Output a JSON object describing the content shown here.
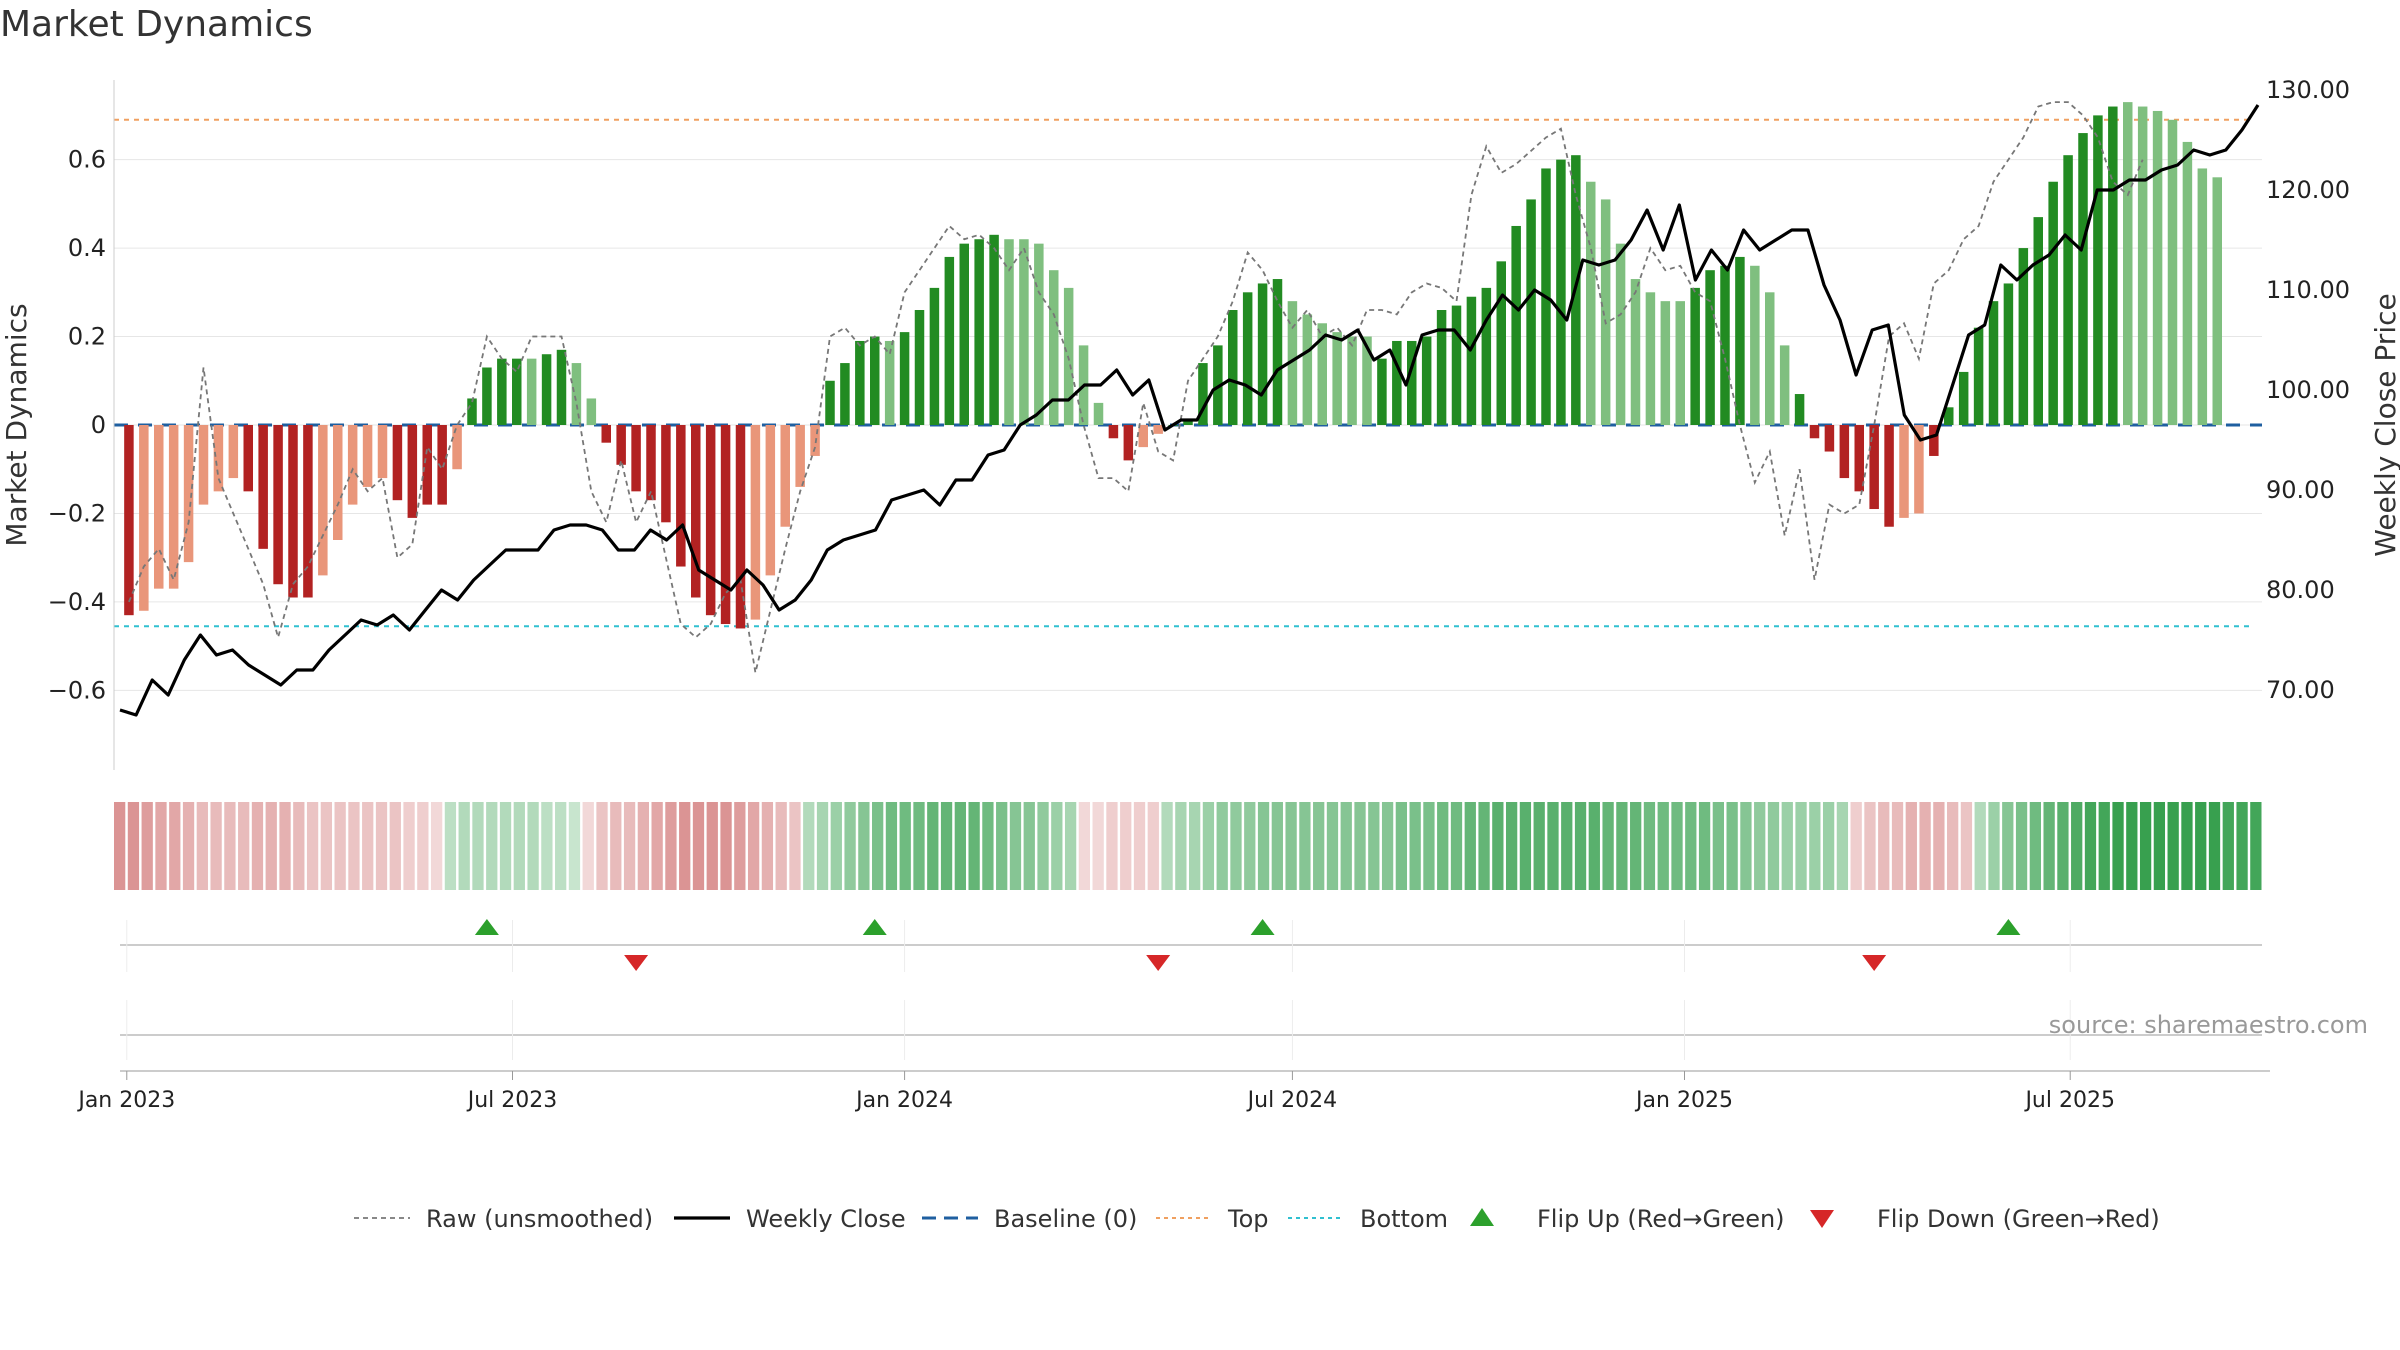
{
  "title": "Market Dynamics",
  "source": "source: sharemaestro.com",
  "chart_data": {
    "type": "bar",
    "title": "Market Dynamics",
    "ylabel_left": "Market Dynamics",
    "ylabel_right": "Weekly Close Price",
    "ylim_left": [
      -0.78,
      0.78
    ],
    "ylim_right": [
      62,
      131
    ],
    "yticks_left": [
      -0.6,
      -0.4,
      -0.2,
      0,
      0.2,
      0.4,
      0.6
    ],
    "ytick_labels_left": [
      "−0.6",
      "−0.4",
      "−0.2",
      "0",
      "0.2",
      "0.4",
      "0.6"
    ],
    "yticks_right": [
      70,
      80,
      90,
      100,
      110,
      120,
      130
    ],
    "ytick_labels_right": [
      "70.00",
      "80.00",
      "90.00",
      "100.00",
      "110.00",
      "120.00",
      "130.00"
    ],
    "x_start": "2022-12-26",
    "x_end": "2025-09-29",
    "xticks": [
      "2023-01-01",
      "2023-07-01",
      "2024-01-01",
      "2024-07-01",
      "2025-01-01",
      "2025-07-01"
    ],
    "xtick_labels": [
      "Jan 2023",
      "Jul 2023",
      "Jan 2024",
      "Jul 2024",
      "Jan 2025",
      "Jul 2025"
    ],
    "top_level": 0.69,
    "bottom_level": -0.455,
    "baseline": 0,
    "colors": {
      "strong_red": "#b22222",
      "weak_red": "#e9967a",
      "strong_green": "#228b22",
      "weak_green": "#7fbf7f",
      "raw": "#777777",
      "close": "#000000",
      "baseline": "#1f5fa0",
      "top": "#f0a060",
      "bottom": "#30c0d0",
      "flip_up": "#2ca02c",
      "flip_down": "#d62728"
    },
    "legend_position": "bottom-center",
    "legend": [
      "Raw (unsmoothed)",
      "Weekly Close",
      "Baseline (0)",
      "Top",
      "Bottom",
      "Flip Up (Red→Green)",
      "Flip Down (Green→Red)"
    ],
    "dynamics": [
      -0.43,
      -0.42,
      -0.37,
      -0.37,
      -0.31,
      -0.18,
      -0.15,
      -0.12,
      -0.15,
      -0.28,
      -0.36,
      -0.39,
      -0.39,
      -0.34,
      -0.26,
      -0.18,
      -0.14,
      -0.12,
      -0.17,
      -0.21,
      -0.18,
      -0.18,
      -0.1,
      0.06,
      0.13,
      0.15,
      0.15,
      0.15,
      0.16,
      0.17,
      0.14,
      0.06,
      -0.04,
      -0.09,
      -0.15,
      -0.17,
      -0.22,
      -0.32,
      -0.39,
      -0.43,
      -0.45,
      -0.46,
      -0.44,
      -0.34,
      -0.23,
      -0.14,
      -0.07,
      0.1,
      0.14,
      0.19,
      0.2,
      0.19,
      0.21,
      0.26,
      0.31,
      0.38,
      0.41,
      0.42,
      0.43,
      0.42,
      0.42,
      0.41,
      0.35,
      0.31,
      0.18,
      0.05,
      -0.03,
      -0.08,
      -0.05,
      -0.02,
      0.0,
      0.01,
      0.14,
      0.18,
      0.26,
      0.3,
      0.32,
      0.33,
      0.28,
      0.25,
      0.23,
      0.21,
      0.2,
      0.2,
      0.15,
      0.19,
      0.19,
      0.2,
      0.26,
      0.27,
      0.29,
      0.31,
      0.37,
      0.45,
      0.51,
      0.58,
      0.6,
      0.61,
      0.55,
      0.51,
      0.41,
      0.33,
      0.3,
      0.28,
      0.28,
      0.31,
      0.35,
      0.36,
      0.38,
      0.36,
      0.3,
      0.18,
      0.07,
      -0.03,
      -0.06,
      -0.12,
      -0.15,
      -0.19,
      -0.23,
      -0.21,
      -0.2,
      -0.07,
      0.04,
      0.12,
      0.22,
      0.28,
      0.32,
      0.4,
      0.47,
      0.55,
      0.61,
      0.66,
      0.7,
      0.72,
      0.73,
      0.72,
      0.71,
      0.69,
      0.64,
      0.58,
      0.56
    ],
    "dynamics_shading": [
      "strong",
      "weak",
      "weak",
      "weak",
      "weak",
      "weak",
      "weak",
      "weak",
      "strong",
      "strong",
      "strong",
      "strong",
      "strong",
      "weak",
      "weak",
      "weak",
      "weak",
      "weak",
      "strong",
      "strong",
      "strong",
      "strong",
      "weak",
      "strong",
      "strong",
      "strong",
      "strong",
      "weak",
      "strong",
      "strong",
      "weak",
      "weak",
      "strong",
      "strong",
      "strong",
      "strong",
      "strong",
      "strong",
      "strong",
      "strong",
      "strong",
      "strong",
      "weak",
      "weak",
      "weak",
      "weak",
      "weak",
      "strong",
      "strong",
      "strong",
      "strong",
      "weak",
      "strong",
      "strong",
      "strong",
      "strong",
      "strong",
      "strong",
      "strong",
      "weak",
      "weak",
      "weak",
      "weak",
      "weak",
      "weak",
      "weak",
      "strong",
      "strong",
      "weak",
      "weak",
      "strong",
      "strong",
      "strong",
      "strong",
      "strong",
      "strong",
      "strong",
      "strong",
      "weak",
      "weak",
      "weak",
      "weak",
      "weak",
      "weak",
      "strong",
      "strong",
      "strong",
      "strong",
      "strong",
      "strong",
      "strong",
      "strong",
      "strong",
      "strong",
      "strong",
      "strong",
      "strong",
      "strong",
      "weak",
      "weak",
      "weak",
      "weak",
      "weak",
      "weak",
      "weak",
      "strong",
      "strong",
      "strong",
      "strong",
      "weak",
      "weak",
      "weak",
      "strong",
      "strong",
      "strong",
      "strong",
      "strong",
      "strong",
      "strong",
      "weak",
      "weak",
      "strong",
      "strong",
      "strong",
      "strong",
      "strong",
      "strong",
      "strong",
      "strong",
      "strong",
      "strong",
      "strong",
      "strong",
      "strong",
      "weak",
      "weak",
      "weak",
      "weak",
      "weak",
      "weak"
    ],
    "raw": [
      -0.4,
      -0.32,
      -0.28,
      -0.35,
      -0.22,
      0.13,
      -0.12,
      -0.2,
      -0.28,
      -0.36,
      -0.48,
      -0.36,
      -0.32,
      -0.25,
      -0.18,
      -0.1,
      -0.15,
      -0.12,
      -0.3,
      -0.27,
      -0.05,
      -0.1,
      0.0,
      0.05,
      0.2,
      0.15,
      0.12,
      0.2,
      0.2,
      0.2,
      0.05,
      -0.15,
      -0.22,
      -0.08,
      -0.22,
      -0.15,
      -0.3,
      -0.45,
      -0.48,
      -0.45,
      -0.38,
      -0.35,
      -0.56,
      -0.42,
      -0.28,
      -0.15,
      -0.05,
      0.2,
      0.22,
      0.18,
      0.2,
      0.16,
      0.3,
      0.35,
      0.4,
      0.45,
      0.42,
      0.43,
      0.4,
      0.35,
      0.4,
      0.3,
      0.25,
      0.15,
      0.0,
      -0.12,
      -0.12,
      -0.15,
      0.05,
      -0.06,
      -0.08,
      0.1,
      0.15,
      0.2,
      0.28,
      0.39,
      0.35,
      0.28,
      0.22,
      0.26,
      0.2,
      0.22,
      0.18,
      0.26,
      0.26,
      0.25,
      0.3,
      0.32,
      0.31,
      0.28,
      0.52,
      0.63,
      0.57,
      0.59,
      0.62,
      0.65,
      0.67,
      0.52,
      0.4,
      0.23,
      0.25,
      0.3,
      0.4,
      0.35,
      0.36,
      0.3,
      0.28,
      0.15,
      0.0,
      -0.13,
      -0.06,
      -0.25,
      -0.1,
      -0.35,
      -0.18,
      -0.2,
      -0.18,
      0.0,
      0.2,
      0.23,
      0.15,
      0.32,
      0.35,
      0.42,
      0.45,
      0.55,
      0.6,
      0.65,
      0.72,
      0.73,
      0.73,
      0.7,
      0.65,
      0.55,
      0.52,
      0.6
    ],
    "weekly_close": [
      68,
      67.5,
      71,
      69.5,
      73,
      75.5,
      73.5,
      74,
      72.5,
      71.5,
      70.5,
      72,
      72,
      74,
      75.5,
      77,
      76.5,
      77.5,
      76,
      78,
      80,
      79,
      81,
      82.5,
      84,
      84,
      84,
      86,
      86.5,
      86.5,
      86,
      84,
      84,
      86,
      85,
      86.5,
      82,
      81,
      80,
      82,
      80.5,
      78,
      79,
      81,
      84,
      85,
      85.5,
      86,
      89,
      89.5,
      90,
      88.5,
      91,
      91,
      93.5,
      94,
      96.5,
      97.5,
      99,
      99,
      100.5,
      100.5,
      102,
      99.5,
      101,
      96,
      97,
      97,
      100,
      101,
      100.5,
      99.5,
      102,
      103,
      104,
      105.5,
      105,
      106,
      103,
      104,
      100.5,
      105.5,
      106,
      106,
      104,
      107,
      109.5,
      108,
      110,
      109,
      107,
      113,
      112.5,
      113,
      115,
      118,
      114,
      118.5,
      111,
      114,
      112,
      116,
      114,
      115,
      116,
      116,
      110.5,
      107,
      101.5,
      106,
      106.5,
      97.5,
      95,
      95.5,
      100.5,
      105.5,
      106.5,
      112.5,
      111,
      112.5,
      113.5,
      115.5,
      114,
      120,
      120,
      121,
      121,
      122,
      122.5,
      124,
      123.5,
      124,
      126,
      128.5
    ],
    "band": [
      "R",
      "R",
      "R",
      "R",
      "R",
      "R",
      "R",
      "R",
      "R",
      "R",
      "R",
      "R",
      "R",
      "R",
      "R",
      "R",
      "R",
      "R",
      "R",
      "R",
      "R",
      "R",
      "R",
      "R",
      "G",
      "G",
      "G",
      "G",
      "G",
      "G",
      "G",
      "G",
      "G",
      "G",
      "R",
      "R",
      "R",
      "R",
      "R",
      "R",
      "R",
      "R",
      "R",
      "R",
      "R",
      "R",
      "R",
      "R",
      "R",
      "R",
      "G",
      "G",
      "G",
      "G",
      "G",
      "G",
      "G",
      "G",
      "G",
      "G",
      "G",
      "G",
      "G",
      "G",
      "G",
      "G",
      "G",
      "G",
      "G",
      "G",
      "R",
      "R",
      "R",
      "R",
      "R",
      "R",
      "G",
      "G",
      "G",
      "G",
      "G",
      "G",
      "G",
      "G",
      "G",
      "G",
      "G",
      "G",
      "G",
      "G",
      "G",
      "G",
      "G",
      "G",
      "G",
      "G",
      "G",
      "G",
      "G",
      "G",
      "G",
      "G",
      "G",
      "G",
      "G",
      "G",
      "G",
      "G",
      "G",
      "G",
      "G",
      "G",
      "G",
      "G",
      "G",
      "G",
      "G",
      "G",
      "G",
      "G",
      "G",
      "G",
      "G",
      "G",
      "G",
      "G",
      "R",
      "R",
      "R",
      "R",
      "R",
      "R",
      "R",
      "R",
      "R",
      "G",
      "G",
      "G",
      "G",
      "G",
      "G",
      "G",
      "G",
      "G",
      "G",
      "G",
      "G",
      "G",
      "G",
      "G",
      "G",
      "G",
      "G",
      "G",
      "G",
      "G"
    ],
    "band_intensity": [
      0.55,
      0.55,
      0.5,
      0.45,
      0.45,
      0.4,
      0.35,
      0.35,
      0.35,
      0.35,
      0.4,
      0.4,
      0.4,
      0.35,
      0.3,
      0.3,
      0.3,
      0.3,
      0.3,
      0.3,
      0.3,
      0.25,
      0.25,
      0.2,
      0.3,
      0.35,
      0.35,
      0.35,
      0.35,
      0.35,
      0.35,
      0.3,
      0.3,
      0.25,
      0.2,
      0.3,
      0.35,
      0.35,
      0.4,
      0.45,
      0.5,
      0.55,
      0.55,
      0.55,
      0.55,
      0.5,
      0.45,
      0.4,
      0.35,
      0.3,
      0.35,
      0.4,
      0.45,
      0.5,
      0.55,
      0.6,
      0.65,
      0.65,
      0.65,
      0.7,
      0.7,
      0.7,
      0.7,
      0.65,
      0.6,
      0.55,
      0.55,
      0.5,
      0.45,
      0.4,
      0.2,
      0.2,
      0.25,
      0.25,
      0.25,
      0.25,
      0.35,
      0.4,
      0.4,
      0.45,
      0.5,
      0.5,
      0.5,
      0.55,
      0.55,
      0.55,
      0.55,
      0.55,
      0.55,
      0.55,
      0.55,
      0.55,
      0.55,
      0.6,
      0.6,
      0.6,
      0.65,
      0.65,
      0.7,
      0.7,
      0.75,
      0.75,
      0.75,
      0.75,
      0.75,
      0.75,
      0.75,
      0.75,
      0.7,
      0.7,
      0.7,
      0.65,
      0.65,
      0.65,
      0.65,
      0.65,
      0.6,
      0.6,
      0.55,
      0.5,
      0.5,
      0.45,
      0.45,
      0.45,
      0.45,
      0.4,
      0.25,
      0.3,
      0.35,
      0.35,
      0.4,
      0.4,
      0.4,
      0.35,
      0.3,
      0.35,
      0.45,
      0.55,
      0.6,
      0.65,
      0.7,
      0.75,
      0.8,
      0.85,
      0.85,
      0.9,
      0.9,
      0.9,
      0.9,
      0.9,
      0.9,
      0.9,
      0.9,
      0.85,
      0.85,
      0.85
    ],
    "flip_up": [
      "2023-06-19",
      "2023-12-18",
      "2024-06-17",
      "2025-06-02"
    ],
    "flip_down": [
      "2023-08-28",
      "2024-04-29",
      "2025-03-31"
    ]
  }
}
